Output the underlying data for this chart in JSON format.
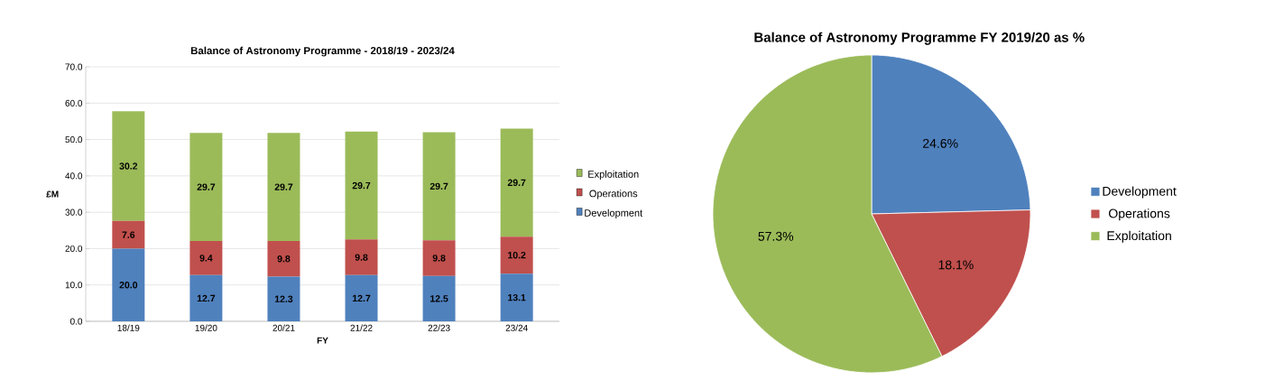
{
  "chart_data": [
    {
      "type": "bar",
      "stacked": true,
      "title": "Balance of Astronomy Programme - 2018/19 - 2023/24",
      "xlabel": "FY",
      "ylabel": "£M",
      "categories": [
        "18/19",
        "19/20",
        "20/21",
        "21/22",
        "22/23",
        "23/24"
      ],
      "series": [
        {
          "name": "Development",
          "color": "#4f81bd",
          "values": [
            20.0,
            12.7,
            12.3,
            12.7,
            12.5,
            13.1
          ],
          "value_labels": [
            "20.0",
            "12.7",
            "12.3",
            "12.7",
            "12.5",
            "13.1"
          ]
        },
        {
          "name": "Operations",
          "color": "#c0504d",
          "values": [
            7.6,
            9.4,
            9.8,
            9.8,
            9.8,
            10.2
          ],
          "value_labels": [
            "7.6",
            "9.4",
            "9.8",
            "9.8",
            "9.8",
            "10.2"
          ]
        },
        {
          "name": "Exploitation",
          "color": "#9bbb59",
          "values": [
            30.2,
            29.7,
            29.7,
            29.7,
            29.7,
            29.7
          ],
          "value_labels": [
            "30.2",
            "29.7",
            "29.7",
            "29.7",
            "29.7",
            "29.7"
          ]
        }
      ],
      "ylim": [
        0,
        70
      ],
      "yticks": [
        {
          "value": 0,
          "label": "0.0"
        },
        {
          "value": 10,
          "label": "10.0"
        },
        {
          "value": 20,
          "label": "20.0"
        },
        {
          "value": 30,
          "label": "30.0"
        },
        {
          "value": 40,
          "label": "40.0"
        },
        {
          "value": 50,
          "label": "50.0"
        },
        {
          "value": 60,
          "label": "60.0"
        },
        {
          "value": 70,
          "label": "70.0"
        }
      ],
      "grid": "y",
      "legend": "right"
    },
    {
      "type": "pie",
      "title": "Balance of Astronomy Programme FY 2019/20 as %",
      "categories": [
        "Development",
        "Operations",
        "Exploitation"
      ],
      "values": [
        24.6,
        18.1,
        57.3
      ],
      "colors": [
        "#4f81bd",
        "#c0504d",
        "#9bbb59"
      ],
      "value_labels": [
        "24.6%",
        "18.1%",
        "57.3%"
      ],
      "legend": "right"
    }
  ]
}
